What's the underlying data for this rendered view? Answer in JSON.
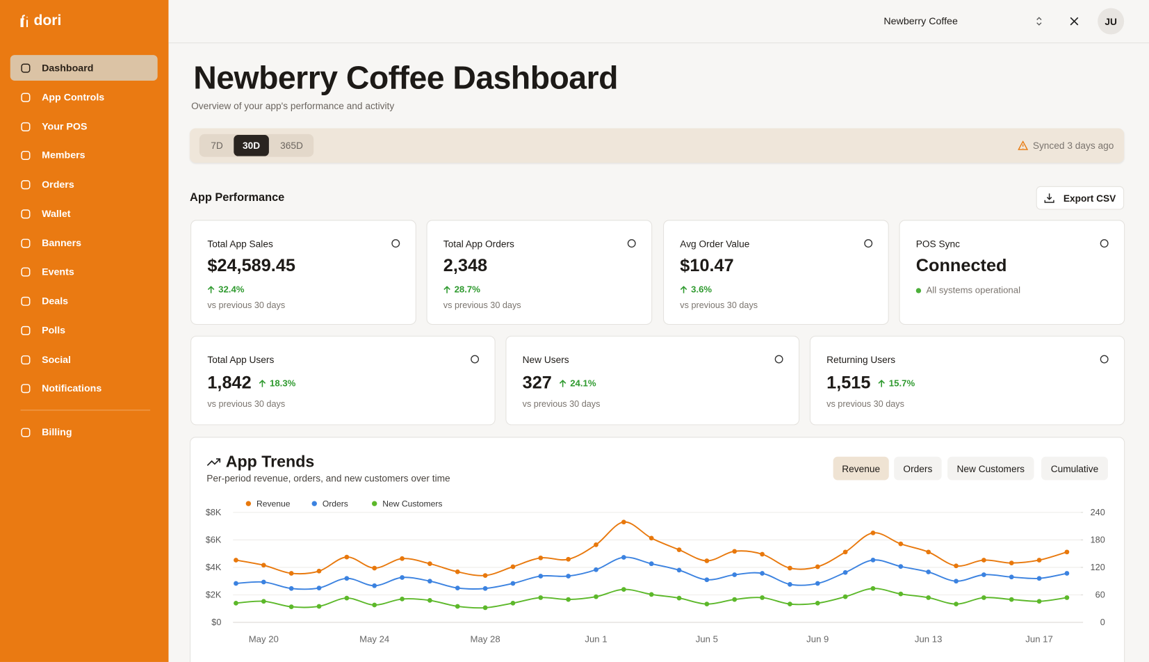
{
  "sidebar": {
    "brand": "dori",
    "nav": [
      "Dashboard",
      "App Controls",
      "Your POS",
      "Members",
      "Orders",
      "Wallet",
      "Banners",
      "Events",
      "Deals",
      "Polls",
      "Social",
      "Notifications"
    ],
    "billing": "Billing"
  },
  "topbar": {
    "workspace": "Newberry Coffee",
    "avatar": "JU"
  },
  "header": {
    "title": "Newberry Coffee Dashboard",
    "subtitle": "Overview of your app's performance and activity"
  },
  "range": {
    "options": [
      "7D",
      "30D",
      "365D"
    ],
    "sync": "Synced 3 days ago"
  },
  "performance": {
    "title": "App Performance",
    "export": "Export CSV"
  },
  "cards": [
    {
      "label": "Total App Sales",
      "value": "$24,589.45",
      "change": "32.4%",
      "note": "vs previous 30 days"
    },
    {
      "label": "Total App Orders",
      "value": "2,348",
      "change": "28.7%",
      "note": "vs previous 30 days"
    },
    {
      "label": "Avg Order Value",
      "value": "$10.47",
      "change": "3.6%",
      "note": "vs previous 30 days"
    },
    {
      "label": "POS Sync",
      "value": "Connected",
      "status": "All systems operational"
    }
  ],
  "user_cards": [
    {
      "label": "Total App Users",
      "value": "1,842",
      "change": "18.3%",
      "note": "vs previous 30 days"
    },
    {
      "label": "New Users",
      "value": "327",
      "change": "24.1%",
      "note": "vs previous 30 days"
    },
    {
      "label": "Returning Users",
      "value": "1,515",
      "change": "15.7%",
      "note": "vs previous 30 days"
    }
  ],
  "chart_data": {
    "type": "line",
    "title": "App Trends",
    "subtitle": "Per-period revenue, orders, and new customers over time",
    "tabs": [
      "Revenue",
      "Orders",
      "New Customers",
      "Cumulative"
    ],
    "categories": [
      null,
      "May 20",
      null,
      null,
      null,
      "May 24",
      null,
      null,
      null,
      "May 28",
      null,
      null,
      null,
      "Jun 1",
      null,
      null,
      null,
      "Jun 5",
      null,
      null,
      null,
      "Jun 9",
      null,
      null,
      null,
      "Jun 13",
      null,
      null,
      null,
      "Jun 17",
      null
    ],
    "series": [
      {
        "name": "Revenue",
        "color": "#e8780c",
        "axis": "y",
        "values": [
          4530,
          4160,
          3570,
          3730,
          4750,
          3950,
          4640,
          4270,
          3680,
          3410,
          4050,
          4690,
          4590,
          5650,
          7300,
          6130,
          5280,
          4480,
          5170,
          4960,
          3950,
          4050,
          5120,
          6510,
          5710,
          5120,
          4110,
          4530,
          4320,
          4530,
          5120
        ]
      },
      {
        "name": "Orders",
        "color": "#3b82e0",
        "axis": "y2",
        "values": [
          85,
          88,
          74,
          75,
          96,
          80,
          98,
          90,
          75,
          74,
          85,
          101,
          101,
          115,
          142,
          128,
          114,
          93,
          104,
          107,
          83,
          85,
          109,
          136,
          122,
          110,
          90,
          104,
          99,
          96,
          107
        ]
      },
      {
        "name": "New Customers",
        "color": "#5cb82a",
        "axis": "y2",
        "values": [
          42,
          46,
          34,
          35,
          53,
          38,
          51,
          48,
          35,
          32,
          42,
          54,
          50,
          56,
          72,
          61,
          53,
          40,
          50,
          54,
          40,
          42,
          56,
          74,
          62,
          54,
          40,
          54,
          50,
          46,
          54
        ]
      }
    ],
    "ylim": [
      0,
      8000
    ],
    "yticks": [
      {
        "value": 0,
        "label": "$0"
      },
      {
        "value": 2000,
        "label": "$2K"
      },
      {
        "value": 4000,
        "label": "$4K"
      },
      {
        "value": 6000,
        "label": "$6K"
      },
      {
        "value": 8000,
        "label": "$8K"
      }
    ],
    "y2lim": [
      0,
      240
    ],
    "y2ticks": [
      0,
      60,
      120,
      180,
      240
    ],
    "grid": true
  }
}
